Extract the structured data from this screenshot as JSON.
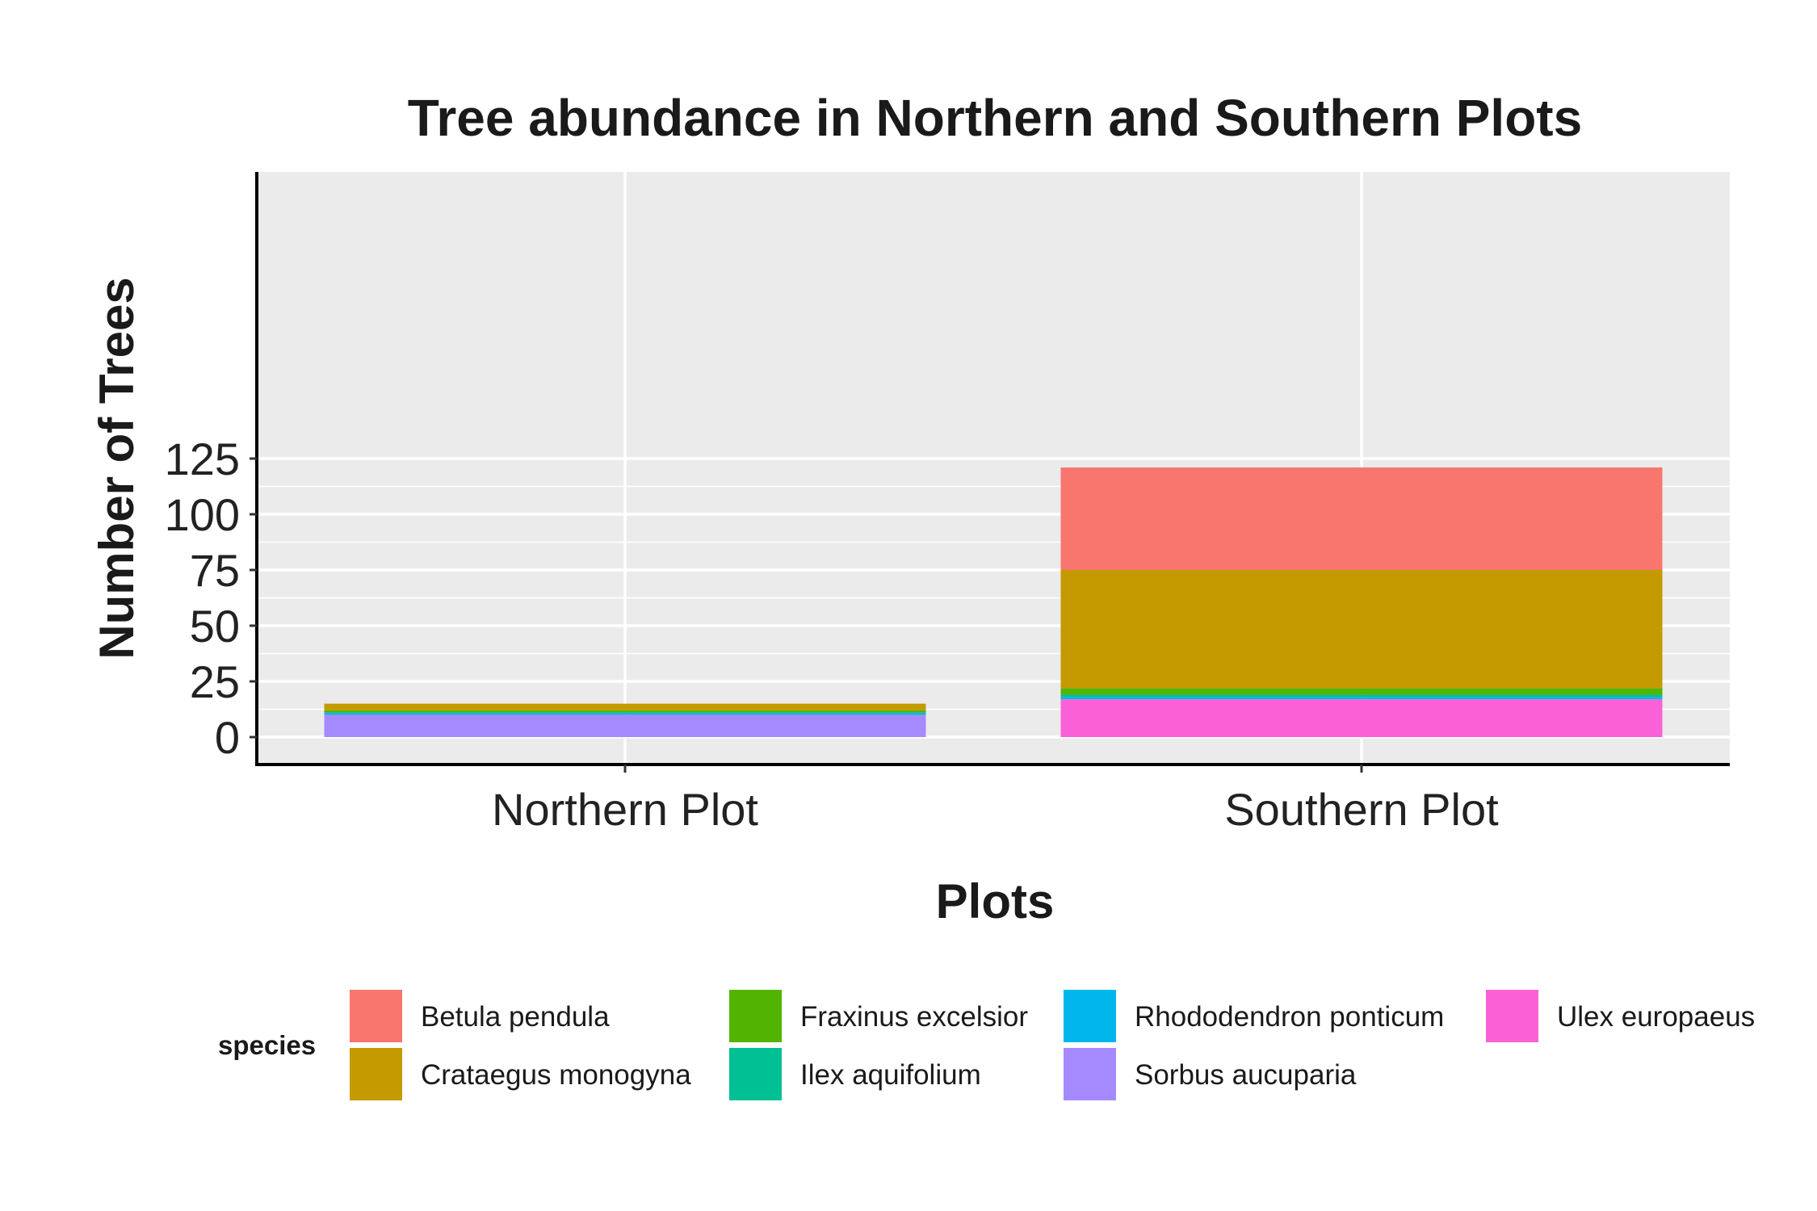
{
  "chart_data": {
    "type": "bar",
    "stacked": true,
    "title": "Tree abundance in Northern and Southern Plots",
    "xlabel": "Plots",
    "ylabel": "Number of Trees",
    "categories": [
      "Northern Plot",
      "Southern Plot"
    ],
    "ylim": [
      0,
      125
    ],
    "yticks": [
      0,
      25,
      50,
      75,
      100,
      125
    ],
    "grid": true,
    "legend_title": "species",
    "legend_position": "bottom",
    "series": [
      {
        "name": "Betula pendula",
        "color": "#F8766D",
        "values": [
          0,
          46
        ]
      },
      {
        "name": "Crataegus monogyna",
        "color": "#C49A00",
        "values": [
          3,
          53
        ]
      },
      {
        "name": "Fraxinus excelsior",
        "color": "#53B400",
        "values": [
          1,
          3
        ]
      },
      {
        "name": "Ilex aquifolium",
        "color": "#00C094",
        "values": [
          0,
          1
        ]
      },
      {
        "name": "Rhododendron ponticum",
        "color": "#00B6EB",
        "values": [
          1,
          1
        ]
      },
      {
        "name": "Sorbus aucuparia",
        "color": "#A58AFF",
        "values": [
          10,
          0
        ]
      },
      {
        "name": "Ulex europaeus",
        "color": "#FB61D7",
        "values": [
          0,
          17
        ]
      }
    ]
  }
}
